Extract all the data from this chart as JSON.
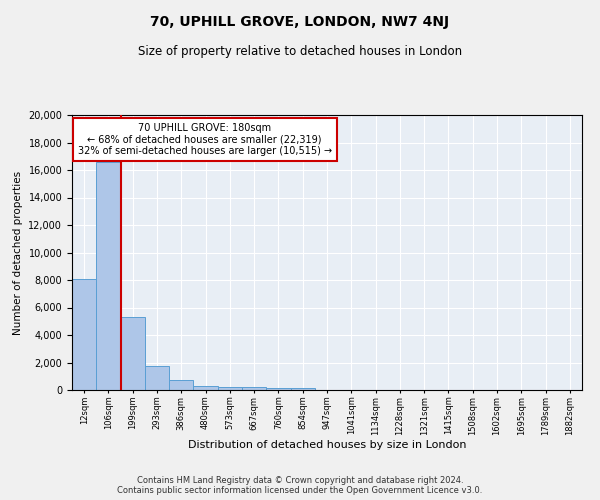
{
  "title": "70, UPHILL GROVE, LONDON, NW7 4NJ",
  "subtitle": "Size of property relative to detached houses in London",
  "xlabel": "Distribution of detached houses by size in London",
  "ylabel": "Number of detached properties",
  "bin_labels": [
    "12sqm",
    "106sqm",
    "199sqm",
    "293sqm",
    "386sqm",
    "480sqm",
    "573sqm",
    "667sqm",
    "760sqm",
    "854sqm",
    "947sqm",
    "1041sqm",
    "1134sqm",
    "1228sqm",
    "1321sqm",
    "1415sqm",
    "1508sqm",
    "1602sqm",
    "1695sqm",
    "1789sqm",
    "1882sqm"
  ],
  "bar_heights": [
    8100,
    16600,
    5300,
    1750,
    700,
    300,
    230,
    200,
    170,
    130,
    0,
    0,
    0,
    0,
    0,
    0,
    0,
    0,
    0,
    0,
    0
  ],
  "bar_color": "#aec6e8",
  "bar_edge_color": "#5a9fd4",
  "property_line_x": 2,
  "property_line_color": "#cc0000",
  "annotation_text": "70 UPHILL GROVE: 180sqm\n← 68% of detached houses are smaller (22,319)\n32% of semi-detached houses are larger (10,515) →",
  "annotation_box_color": "#ffffff",
  "annotation_box_edge_color": "#cc0000",
  "ylim": [
    0,
    20000
  ],
  "yticks": [
    0,
    2000,
    4000,
    6000,
    8000,
    10000,
    12000,
    14000,
    16000,
    18000,
    20000
  ],
  "bg_color": "#e8eef5",
  "fig_bg_color": "#f0f0f0",
  "footer": "Contains HM Land Registry data © Crown copyright and database right 2024.\nContains public sector information licensed under the Open Government Licence v3.0.",
  "title_fontsize": 10,
  "subtitle_fontsize": 8.5,
  "annotation_fontsize": 7,
  "footer_fontsize": 6,
  "ylabel_fontsize": 7.5,
  "xlabel_fontsize": 8,
  "ytick_fontsize": 7,
  "xtick_fontsize": 6
}
